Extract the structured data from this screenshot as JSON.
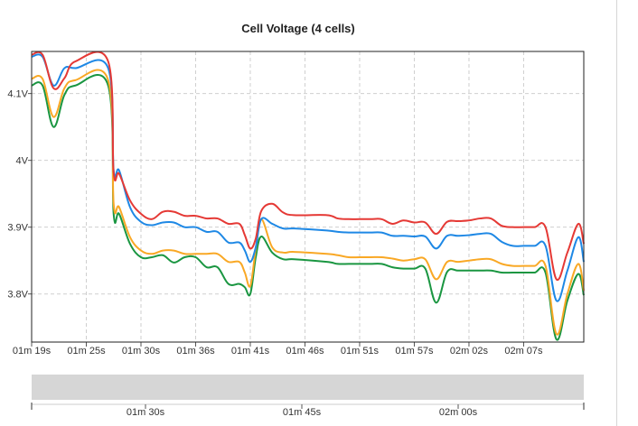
{
  "chart_data": {
    "type": "line",
    "title": "Cell Voltage (4 cells)",
    "xlabel": "",
    "ylabel": "",
    "xlim": [
      79,
      129.5
    ],
    "ylim": [
      3.728,
      4.163
    ],
    "yticks": [
      3.8,
      3.9,
      4.0,
      4.1
    ],
    "ytick_labels": [
      "3.8V",
      "3.9V",
      "4V",
      "4.1V"
    ],
    "xticks": [
      79,
      84,
      89,
      94,
      99,
      104,
      109,
      114,
      119,
      124
    ],
    "xtick_labels": [
      "01m 19s",
      "01m 25s",
      "01m 30s",
      "01m 36s",
      "01m 41s",
      "01m 46s",
      "01m 51s",
      "01m 57s",
      "02m 02s",
      "02m 07s"
    ],
    "grid": true,
    "legend": "none",
    "colors": [
      "#e53935",
      "#1e88e5",
      "#f9a825",
      "#1a9641"
    ],
    "series": [
      {
        "color": "#e53935",
        "x": [
          79,
          80,
          81,
          82,
          83,
          86,
          86.5,
          87,
          88,
          89,
          90,
          91,
          92,
          93,
          94,
          95,
          96,
          97,
          98,
          98.5,
          99,
          99.5,
          100,
          101,
          102,
          103,
          106,
          107,
          108,
          109,
          110,
          111,
          112,
          113,
          114,
          115,
          116,
          117,
          118,
          119,
          120,
          121,
          122,
          123,
          124,
          125,
          126,
          127,
          128,
          129,
          129.5
        ],
        "y": [
          4.158,
          4.158,
          4.108,
          4.123,
          4.148,
          4.148,
          3.982,
          3.98,
          3.94,
          3.92,
          3.912,
          3.923,
          3.923,
          3.917,
          3.917,
          3.913,
          3.913,
          3.905,
          3.905,
          3.888,
          3.868,
          3.883,
          3.924,
          3.935,
          3.922,
          3.918,
          3.918,
          3.913,
          3.912,
          3.912,
          3.912,
          3.912,
          3.905,
          3.91,
          3.907,
          3.907,
          3.89,
          3.908,
          3.909,
          3.91,
          3.913,
          3.913,
          3.902,
          3.9,
          3.9,
          3.9,
          3.9,
          3.822,
          3.862,
          3.905,
          3.875
        ]
      },
      {
        "color": "#1e88e5",
        "x": [
          79,
          80,
          81,
          82,
          83,
          86,
          86.5,
          87,
          88,
          89,
          90,
          91,
          92,
          93,
          94,
          95,
          96,
          97,
          98,
          98.5,
          99,
          99.5,
          100,
          101,
          102,
          103,
          106,
          107,
          108,
          109,
          110,
          111,
          112,
          113,
          114,
          115,
          116,
          117,
          118,
          119,
          120,
          121,
          122,
          123,
          124,
          125,
          126,
          127,
          128,
          129,
          129.5
        ],
        "y": [
          4.155,
          4.155,
          4.112,
          4.138,
          4.138,
          4.138,
          3.985,
          3.985,
          3.93,
          3.908,
          3.903,
          3.907,
          3.907,
          3.9,
          3.9,
          3.893,
          3.893,
          3.877,
          3.877,
          3.865,
          3.848,
          3.87,
          3.912,
          3.905,
          3.898,
          3.898,
          3.895,
          3.893,
          3.892,
          3.892,
          3.892,
          3.892,
          3.887,
          3.887,
          3.886,
          3.886,
          3.868,
          3.887,
          3.887,
          3.888,
          3.89,
          3.89,
          3.878,
          3.872,
          3.872,
          3.872,
          3.872,
          3.79,
          3.835,
          3.885,
          3.848
        ]
      },
      {
        "color": "#f9a825",
        "x": [
          79,
          80,
          81,
          82,
          83,
          86,
          86.5,
          87,
          88,
          89,
          90,
          91,
          92,
          93,
          94,
          95,
          96,
          97,
          98,
          98.5,
          99,
          99.5,
          100,
          101,
          102,
          103,
          106,
          107,
          108,
          109,
          110,
          111,
          112,
          113,
          114,
          115,
          116,
          117,
          118,
          119,
          120,
          121,
          122,
          123,
          124,
          125,
          126,
          127,
          128,
          129,
          129.5
        ],
        "y": [
          4.122,
          4.122,
          4.065,
          4.108,
          4.12,
          4.12,
          3.935,
          3.93,
          3.885,
          3.865,
          3.86,
          3.865,
          3.865,
          3.86,
          3.86,
          3.86,
          3.86,
          3.848,
          3.848,
          3.832,
          3.812,
          3.868,
          3.912,
          3.87,
          3.862,
          3.863,
          3.86,
          3.858,
          3.855,
          3.855,
          3.855,
          3.855,
          3.853,
          3.85,
          3.852,
          3.852,
          3.822,
          3.848,
          3.848,
          3.85,
          3.852,
          3.852,
          3.845,
          3.842,
          3.842,
          3.842,
          3.842,
          3.74,
          3.8,
          3.845,
          3.805
        ]
      },
      {
        "color": "#1a9641",
        "x": [
          79,
          80,
          81,
          82,
          83,
          86,
          86.5,
          87,
          88,
          89,
          90,
          91,
          92,
          93,
          94,
          95,
          96,
          97,
          98,
          98.5,
          99,
          99.5,
          100,
          101,
          102,
          103,
          106,
          107,
          108,
          109,
          110,
          111,
          112,
          113,
          114,
          115,
          116,
          117,
          118,
          119,
          120,
          121,
          122,
          123,
          124,
          125,
          126,
          127,
          128,
          129,
          129.5
        ],
        "y": [
          4.112,
          4.112,
          4.05,
          4.098,
          4.112,
          4.112,
          3.92,
          3.92,
          3.875,
          3.855,
          3.855,
          3.858,
          3.847,
          3.855,
          3.855,
          3.84,
          3.84,
          3.815,
          3.815,
          3.81,
          3.8,
          3.855,
          3.886,
          3.862,
          3.852,
          3.852,
          3.848,
          3.845,
          3.845,
          3.845,
          3.845,
          3.845,
          3.84,
          3.838,
          3.838,
          3.838,
          3.787,
          3.833,
          3.835,
          3.835,
          3.835,
          3.835,
          3.832,
          3.832,
          3.832,
          3.832,
          3.832,
          3.732,
          3.79,
          3.83,
          3.798
        ]
      }
    ],
    "navigator": {
      "tick_labels": [
        "01m 30s",
        "01m 45s",
        "02m 00s"
      ]
    }
  }
}
